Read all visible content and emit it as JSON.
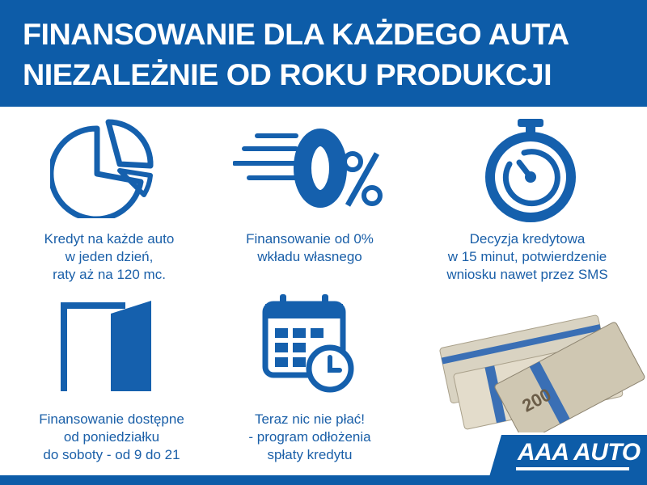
{
  "header": {
    "line1": "FINANSOWANIE DLA KAŻDEGO AUTA",
    "line2": "NIEZALEŻNIE OD ROKU PRODUKCJI"
  },
  "features": [
    {
      "icon": "pie-chart-icon",
      "lines": [
        "Kredyt na każde auto",
        "w jeden dzień,",
        "raty aż na 120 mc."
      ]
    },
    {
      "icon": "zero-percent-icon",
      "lines": [
        "Finansowanie od 0%",
        "wkładu własnego"
      ]
    },
    {
      "icon": "stopwatch-icon",
      "lines": [
        "Decyzja kredytowa",
        "w 15 minut, potwierdzenie",
        "wniosku nawet przez SMS"
      ]
    },
    {
      "icon": "open-door-icon",
      "lines": [
        "Finansowanie dostępne",
        "od poniedziałku",
        "do soboty - od 9 do 21"
      ]
    },
    {
      "icon": "calendar-clock-icon",
      "lines": [
        "Teraz nic nie płać!",
        "- program odłożenia",
        "spłaty kredytu"
      ]
    }
  ],
  "money_image": {
    "icon": "banknotes-stack-icon",
    "denomination": "200"
  },
  "logo": {
    "text": "AAA AUTO"
  },
  "colors": {
    "brand_blue": "#0d5ca8",
    "text_blue": "#1a5fa8"
  }
}
